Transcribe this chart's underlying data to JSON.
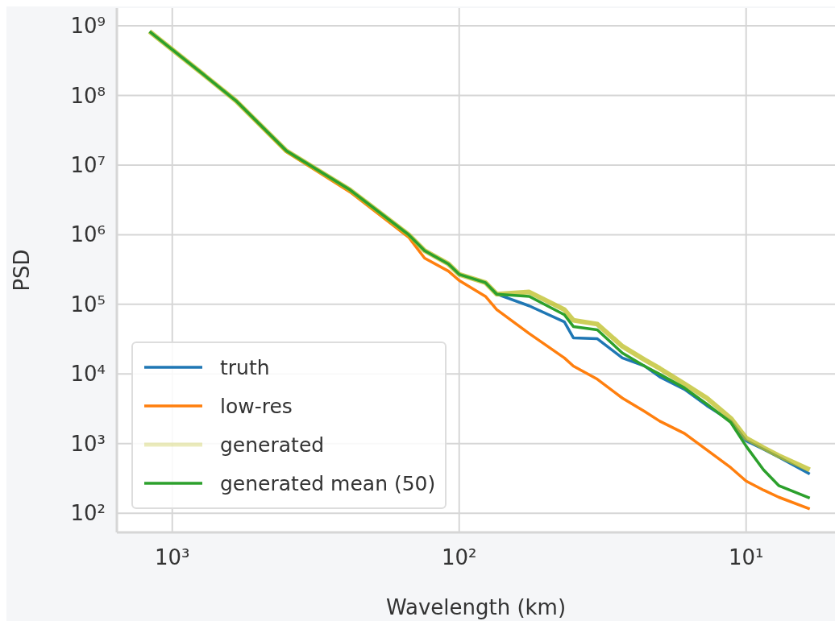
{
  "chart_data": {
    "type": "line",
    "xlabel": "Wavelength (km)",
    "ylabel": "PSD",
    "log": "xy",
    "grid": true,
    "legend": "bottom left",
    "xlim": [
      1560,
      4.9
    ],
    "ylim": [
      53,
      1800000000
    ],
    "xticks": [
      {
        "value": 1000,
        "label": "10³"
      },
      {
        "value": 100,
        "label": "10²"
      },
      {
        "value": 10,
        "label": "10¹"
      }
    ],
    "yticks": [
      {
        "value": 100,
        "label": "10²"
      },
      {
        "value": 1000,
        "label": "10³"
      },
      {
        "value": 10000,
        "label": "10⁴"
      },
      {
        "value": 100000,
        "label": "10⁵"
      },
      {
        "value": 1000000,
        "label": "10⁶"
      },
      {
        "value": 10000000,
        "label": "10⁷"
      },
      {
        "value": 100000000,
        "label": "10⁸"
      },
      {
        "value": 1000000000,
        "label": "10⁹"
      }
    ],
    "x": [
      1200,
      790,
      600,
      400,
      240,
      150,
      132,
      109,
      100,
      81,
      74,
      57,
      43,
      40,
      33,
      27,
      22.6,
      20,
      16.4,
      13.7,
      11.3,
      10,
      8.7,
      7.7,
      6.0
    ],
    "series": [
      {
        "name": "truth",
        "color": "#1f77b4",
        "values": [
          null,
          null,
          null,
          null,
          null,
          null,
          null,
          null,
          null,
          205000,
          140000,
          95000,
          56000,
          33000,
          32000,
          17000,
          13000,
          9100,
          6000,
          3500,
          2100,
          1100,
          830,
          640,
          365
        ]
      },
      {
        "name": "low-res",
        "color": "#ff7f0e",
        "values": [
          null,
          null,
          84000000,
          15500000,
          4100000,
          920000,
          460000,
          300000,
          220000,
          130000,
          84000,
          38000,
          17000,
          13000,
          8400,
          4500,
          2900,
          2100,
          1400,
          810,
          450,
          290,
          215,
          170,
          115
        ]
      },
      {
        "name": "generated",
        "color": "#bcbd22",
        "values": [
          830000000,
          210000000,
          84000000,
          16000000,
          4400000,
          1000000,
          590000,
          380000,
          270000,
          205000,
          140000,
          150000,
          84000,
          59000,
          52000,
          25000,
          16000,
          12000,
          7200,
          4500,
          2300,
          1200,
          870,
          670,
          420
        ]
      },
      {
        "name": "generated mean (50)",
        "color": "#2ca02c",
        "values": [
          830000000,
          210000000,
          84000000,
          16000000,
          4400000,
          1000000,
          590000,
          380000,
          270000,
          205000,
          140000,
          130000,
          71000,
          48000,
          43000,
          20000,
          13000,
          9900,
          6300,
          3700,
          2000,
          920,
          420,
          250,
          165
        ]
      }
    ]
  }
}
